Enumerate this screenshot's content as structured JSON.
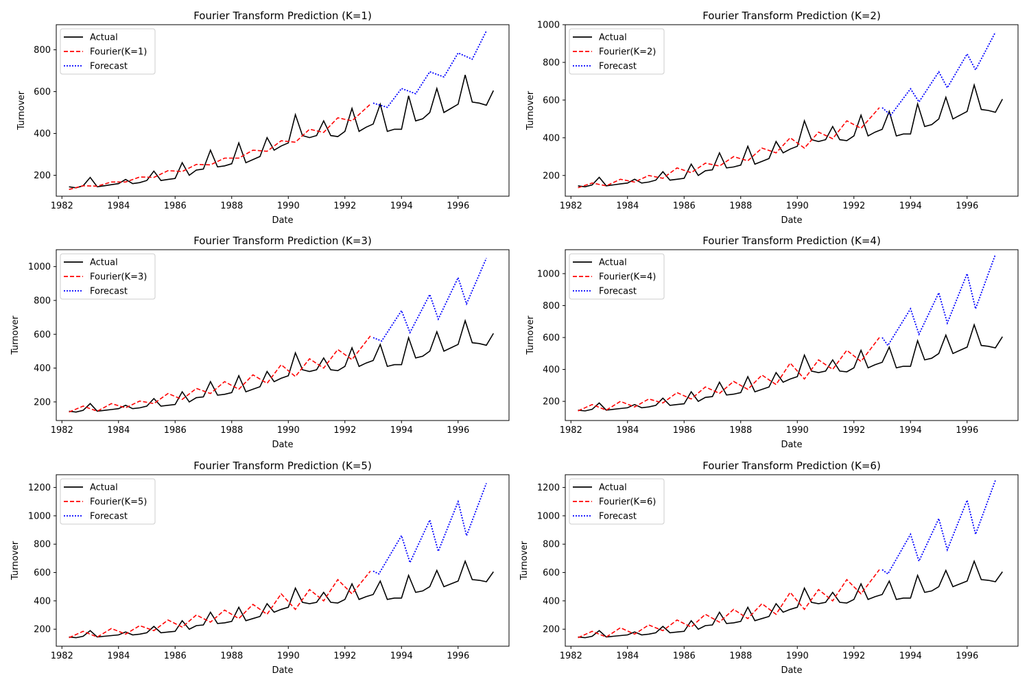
{
  "chart_data": [
    {
      "type": "line",
      "title": "Fourier Transform Prediction (K=1)",
      "xlabel": "Date",
      "ylabel": "Turnover",
      "xlim": [
        1981.8,
        1997.8
      ],
      "ylim": [
        100,
        920
      ],
      "yticks": [
        200,
        400,
        600,
        800
      ],
      "xticks": [
        "1982",
        "1984",
        "1986",
        "1988",
        "1990",
        "1992",
        "1994",
        "1996"
      ],
      "legend": [
        "Actual",
        "Fourier(K=1)",
        "Forecast"
      ],
      "legend_position": "upper-left",
      "forecast_points": [
        [
          1993.0,
          545
        ],
        [
          1993.5,
          525
        ],
        [
          1994.0,
          615
        ],
        [
          1994.5,
          590
        ],
        [
          1995.0,
          695
        ],
        [
          1995.5,
          670
        ],
        [
          1996.0,
          785
        ],
        [
          1996.5,
          755
        ],
        [
          1997.0,
          890
        ]
      ],
      "fit_points": [
        [
          1982.25,
          132
        ],
        [
          1982.75,
          150
        ],
        [
          1983.25,
          148
        ],
        [
          1983.75,
          168
        ],
        [
          1984.25,
          168
        ],
        [
          1984.75,
          192
        ],
        [
          1985.25,
          190
        ],
        [
          1985.75,
          222
        ],
        [
          1986.25,
          218
        ],
        [
          1986.75,
          252
        ],
        [
          1987.25,
          250
        ],
        [
          1987.75,
          282
        ],
        [
          1988.25,
          282
        ],
        [
          1988.75,
          320
        ],
        [
          1989.25,
          315
        ],
        [
          1989.75,
          365
        ],
        [
          1990.25,
          358
        ],
        [
          1990.75,
          420
        ],
        [
          1991.25,
          405
        ],
        [
          1991.75,
          475
        ],
        [
          1992.25,
          460
        ],
        [
          1992.9,
          540
        ]
      ]
    },
    {
      "type": "line",
      "title": "Fourier Transform Prediction (K=2)",
      "xlabel": "Date",
      "ylabel": "Turnover",
      "xlim": [
        1981.8,
        1997.8
      ],
      "ylim": [
        90,
        1000
      ],
      "yticks": [
        200,
        400,
        600,
        800,
        1000
      ],
      "xticks": [
        "1982",
        "1984",
        "1986",
        "1988",
        "1990",
        "1992",
        "1994",
        "1996"
      ],
      "legend": [
        "Actual",
        "Fourier(K=2)",
        "Forecast"
      ],
      "legend_position": "upper-left",
      "forecast_points": [
        [
          1993.0,
          560
        ],
        [
          1993.3,
          520
        ],
        [
          1994.0,
          660
        ],
        [
          1994.3,
          590
        ],
        [
          1995.0,
          750
        ],
        [
          1995.3,
          665
        ],
        [
          1996.0,
          845
        ],
        [
          1996.3,
          760
        ],
        [
          1997.0,
          960
        ]
      ],
      "fit_points": [
        [
          1982.25,
          135
        ],
        [
          1982.75,
          160
        ],
        [
          1983.25,
          145
        ],
        [
          1983.75,
          180
        ],
        [
          1984.25,
          165
        ],
        [
          1984.75,
          200
        ],
        [
          1985.25,
          185
        ],
        [
          1985.75,
          240
        ],
        [
          1986.25,
          215
        ],
        [
          1986.75,
          265
        ],
        [
          1987.25,
          250
        ],
        [
          1987.75,
          300
        ],
        [
          1988.25,
          278
        ],
        [
          1988.75,
          345
        ],
        [
          1989.25,
          320
        ],
        [
          1989.75,
          400
        ],
        [
          1990.25,
          345
        ],
        [
          1990.75,
          430
        ],
        [
          1991.25,
          395
        ],
        [
          1991.75,
          490
        ],
        [
          1992.25,
          450
        ],
        [
          1992.9,
          560
        ]
      ]
    },
    {
      "type": "line",
      "title": "Fourier Transform Prediction (K=3)",
      "xlabel": "Date",
      "ylabel": "Turnover",
      "xlim": [
        1981.8,
        1997.8
      ],
      "ylim": [
        90,
        1100
      ],
      "yticks": [
        200,
        400,
        600,
        800,
        1000
      ],
      "xticks": [
        "1982",
        "1984",
        "1986",
        "1988",
        "1990",
        "1992",
        "1994",
        "1996"
      ],
      "legend": [
        "Actual",
        "Fourier(K=3)",
        "Forecast"
      ],
      "legend_position": "upper-left",
      "forecast_points": [
        [
          1993.0,
          580
        ],
        [
          1993.3,
          560
        ],
        [
          1994.0,
          740
        ],
        [
          1994.3,
          610
        ],
        [
          1995.0,
          835
        ],
        [
          1995.3,
          690
        ],
        [
          1996.0,
          935
        ],
        [
          1996.3,
          780
        ],
        [
          1997.0,
          1050
        ]
      ],
      "fit_points": [
        [
          1982.25,
          140
        ],
        [
          1982.75,
          175
        ],
        [
          1983.25,
          145
        ],
        [
          1983.75,
          190
        ],
        [
          1984.25,
          165
        ],
        [
          1984.75,
          205
        ],
        [
          1985.25,
          190
        ],
        [
          1985.75,
          250
        ],
        [
          1986.25,
          215
        ],
        [
          1986.75,
          280
        ],
        [
          1987.25,
          250
        ],
        [
          1987.75,
          320
        ],
        [
          1988.25,
          275
        ],
        [
          1988.75,
          360
        ],
        [
          1989.25,
          310
        ],
        [
          1989.75,
          420
        ],
        [
          1990.25,
          350
        ],
        [
          1990.75,
          455
        ],
        [
          1991.25,
          400
        ],
        [
          1991.75,
          510
        ],
        [
          1992.25,
          450
        ],
        [
          1992.9,
          590
        ]
      ]
    },
    {
      "type": "line",
      "title": "Fourier Transform Prediction (K=4)",
      "xlabel": "Date",
      "ylabel": "Turnover",
      "xlim": [
        1981.8,
        1997.8
      ],
      "ylim": [
        80,
        1150
      ],
      "yticks": [
        200,
        400,
        600,
        800,
        1000
      ],
      "xticks": [
        "1982",
        "1984",
        "1986",
        "1988",
        "1990",
        "1992",
        "1994",
        "1996"
      ],
      "legend": [
        "Actual",
        "Fourier(K=4)",
        "Forecast"
      ],
      "legend_position": "upper-left",
      "forecast_points": [
        [
          1993.0,
          600
        ],
        [
          1993.2,
          550
        ],
        [
          1994.0,
          780
        ],
        [
          1994.3,
          620
        ],
        [
          1995.0,
          880
        ],
        [
          1995.3,
          690
        ],
        [
          1996.0,
          1000
        ],
        [
          1996.3,
          780
        ],
        [
          1997.0,
          1120
        ]
      ],
      "fit_points": [
        [
          1982.25,
          140
        ],
        [
          1982.75,
          180
        ],
        [
          1983.25,
          145
        ],
        [
          1983.75,
          200
        ],
        [
          1984.25,
          165
        ],
        [
          1984.75,
          215
        ],
        [
          1985.25,
          190
        ],
        [
          1985.75,
          255
        ],
        [
          1986.25,
          215
        ],
        [
          1986.75,
          290
        ],
        [
          1987.25,
          250
        ],
        [
          1987.75,
          325
        ],
        [
          1988.25,
          275
        ],
        [
          1988.75,
          365
        ],
        [
          1989.25,
          305
        ],
        [
          1989.75,
          440
        ],
        [
          1990.25,
          340
        ],
        [
          1990.75,
          460
        ],
        [
          1991.25,
          400
        ],
        [
          1991.75,
          520
        ],
        [
          1992.25,
          450
        ],
        [
          1992.9,
          600
        ]
      ]
    },
    {
      "type": "line",
      "title": "Fourier Transform Prediction (K=5)",
      "xlabel": "Date",
      "ylabel": "Turnover",
      "xlim": [
        1981.8,
        1997.8
      ],
      "ylim": [
        80,
        1290
      ],
      "yticks": [
        200,
        400,
        600,
        800,
        1000,
        1200
      ],
      "xticks": [
        "1982",
        "1984",
        "1986",
        "1988",
        "1990",
        "1992",
        "1994",
        "1996"
      ],
      "legend": [
        "Actual",
        "Fourier(K=5)",
        "Forecast"
      ],
      "legend_position": "upper-left",
      "forecast_points": [
        [
          1993.0,
          610
        ],
        [
          1993.2,
          590
        ],
        [
          1994.0,
          860
        ],
        [
          1994.3,
          670
        ],
        [
          1995.0,
          970
        ],
        [
          1995.3,
          750
        ],
        [
          1996.0,
          1100
        ],
        [
          1996.3,
          860
        ],
        [
          1997.0,
          1230
        ]
      ],
      "fit_points": [
        [
          1982.25,
          140
        ],
        [
          1982.75,
          185
        ],
        [
          1983.25,
          145
        ],
        [
          1983.75,
          205
        ],
        [
          1984.25,
          165
        ],
        [
          1984.75,
          225
        ],
        [
          1985.25,
          190
        ],
        [
          1985.75,
          265
        ],
        [
          1986.25,
          215
        ],
        [
          1986.75,
          300
        ],
        [
          1987.25,
          250
        ],
        [
          1987.75,
          335
        ],
        [
          1988.25,
          275
        ],
        [
          1988.75,
          375
        ],
        [
          1989.25,
          305
        ],
        [
          1989.75,
          450
        ],
        [
          1990.25,
          340
        ],
        [
          1990.75,
          480
        ],
        [
          1991.25,
          400
        ],
        [
          1991.75,
          550
        ],
        [
          1992.25,
          450
        ],
        [
          1992.9,
          610
        ]
      ]
    },
    {
      "type": "line",
      "title": "Fourier Transform Prediction (K=6)",
      "xlabel": "Date",
      "ylabel": "Turnover",
      "xlim": [
        1981.8,
        1997.8
      ],
      "ylim": [
        80,
        1290
      ],
      "yticks": [
        200,
        400,
        600,
        800,
        1000,
        1200
      ],
      "xticks": [
        "1982",
        "1984",
        "1986",
        "1988",
        "1990",
        "1992",
        "1994",
        "1996"
      ],
      "legend": [
        "Actual",
        "Fourier(K=6)",
        "Forecast"
      ],
      "legend_position": "upper-left",
      "forecast_points": [
        [
          1993.0,
          620
        ],
        [
          1993.2,
          590
        ],
        [
          1994.0,
          870
        ],
        [
          1994.3,
          680
        ],
        [
          1995.0,
          980
        ],
        [
          1995.3,
          760
        ],
        [
          1996.0,
          1110
        ],
        [
          1996.3,
          870
        ],
        [
          1997.0,
          1250
        ]
      ],
      "fit_points": [
        [
          1982.25,
          140
        ],
        [
          1982.75,
          185
        ],
        [
          1983.25,
          145
        ],
        [
          1983.75,
          210
        ],
        [
          1984.25,
          165
        ],
        [
          1984.75,
          230
        ],
        [
          1985.25,
          190
        ],
        [
          1985.75,
          265
        ],
        [
          1986.25,
          215
        ],
        [
          1986.75,
          305
        ],
        [
          1987.25,
          250
        ],
        [
          1987.75,
          340
        ],
        [
          1988.25,
          275
        ],
        [
          1988.75,
          380
        ],
        [
          1989.25,
          305
        ],
        [
          1989.75,
          460
        ],
        [
          1990.25,
          340
        ],
        [
          1990.75,
          480
        ],
        [
          1991.25,
          400
        ],
        [
          1991.75,
          550
        ],
        [
          1992.25,
          450
        ],
        [
          1992.9,
          620
        ]
      ]
    }
  ],
  "actual_series": {
    "name": "Actual",
    "x_start": 1982.25,
    "x_step": 0.25,
    "values": [
      145,
      140,
      150,
      190,
      145,
      150,
      155,
      160,
      180,
      160,
      165,
      175,
      220,
      175,
      180,
      185,
      260,
      200,
      225,
      230,
      320,
      240,
      245,
      255,
      355,
      260,
      275,
      290,
      380,
      320,
      340,
      355,
      490,
      390,
      380,
      390,
      460,
      390,
      385,
      410,
      520,
      410,
      430,
      445,
      540,
      410,
      420,
      420,
      580,
      460,
      470,
      500,
      615,
      500,
      520,
      540,
      680,
      550,
      545,
      535,
      605
    ]
  },
  "colors": {
    "actual": "#000000",
    "fit": "#ff0000",
    "forecast": "#0000ff"
  }
}
